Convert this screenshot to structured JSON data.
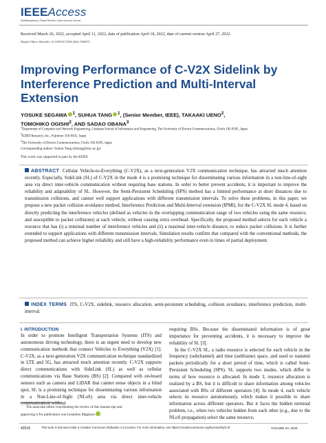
{
  "header": {
    "logo_bold": "IEEE",
    "logo_light": "Access",
    "tagline": "Multidisciplinary  |  Rapid Review  |  Open Access Journal"
  },
  "dates": "Received March 26, 2022, accepted April 11, 2022, date of publication April 18, 2022, date of current version April 27, 2022.",
  "doi": "Digital Object Identifier 10.1109/ACCESS.2022.3168071",
  "title": "Improving Performance of C-V2X Sidelink by Interference Prediction and Multi-Interval Extension",
  "authors": {
    "line1_a": "YOSUKE SEGAWA",
    "line1_a_sup": "1",
    "line1_b": ", SUHUA TANG",
    "line1_b_sup": "1",
    "line1_c": ", (Senior Member, IEEE), TAKAAKI UENO",
    "line1_c_sup": "2",
    "line1_d": ",",
    "line2_a": "TOMOHIKO OGISHI",
    "line2_a_sup": "2",
    "line2_b": ", AND SADAO OBANA",
    "line2_b_sup": "3"
  },
  "affiliations": [
    {
      "sup": "1",
      "text": "Department of Computer and Network Engineering, Graduate School of Informatics and Engineering, The University of Electro-Communications, Chofu 182-8585, Japan"
    },
    {
      "sup": "2",
      "text": "KDDI Research, Inc., Fujimino 356-8502, Japan"
    },
    {
      "sup": "3",
      "text": "The University of Electro-Communications, Chofu 182-8585, Japan"
    }
  ],
  "corresponding": "Corresponding author: Suhua Tang (shtang@uec.ac.jp)",
  "support": "This work was supported in part by the KDDI.",
  "abstract": {
    "label": "ABSTRACT",
    "text": "Cellular Vehicle-to-Everything (C-V2X), as a next-generation V2X communication technique, has attracted much attention recently. Especially, SideLink (SL) of C-V2X in the mode 4 is a promising technique for disseminating various information in a non-line-of-sight area via direct inter-vehicle communication without requiring base stations. In order to better prevent accidents, it is important to improve the reliability and adaptability of SL. However, the Semi-Persistent Scheduling (SPS) method has a limited performance at short distances due to transmission collisions, and cannot well support applications with different transmission intervals. To solve these problems, in this paper, we propose a new packet collision avoidance method, Interference Prediction and Multi-Interval extension (IPMI), for the C-V2X SL mode 4, based on directly predicting the interference vehicles (defined as vehicles in the overlapping communication range of two vehicles using the same resource, and susceptible to packet collisions) at each vehicle, without causing extra overhead. Specifically, the proposed method selects for each vehicle a resource that has (i) a minimal number of interference vehicles and (ii) a maximal inter-vehicle distance, to reduce packet collisions. It is further extended to support applications with different transmission intervals. Simulation results confirm that compared with the conventional methods, the proposed method can achieve higher reliability and still have a high-reliability performance even in times of partial deployment."
  },
  "index_terms": {
    "label": "INDEX TERMS",
    "text": "ITS, C-V2X, sidelink, resource allocation, semi-persistent scheduling, collision avoidance, interference prediction, multi-interval."
  },
  "intro": {
    "heading": "I. INTRODUCTION",
    "left_text": "In order to promote Intelligent Transportation Systems (ITS) and autonomous driving technology, there is an urgent need to develop new communication methods that connect Vehicles to Everything (V2X) [1]. C-V2X, as a next-generation V2X communication technique standardized in LTE and 5G, has attracted much attention recently. C-V2X supports direct communications with SideLink (SL) as well as cellular communications via Base Stations (BS) [2]. Compared with on-board sensors such as camera and LiDAR that cannot sense objects in a blind spot, SL is a promising technique for disseminating various information in a Non-Line-of-Sight (NLoS) area via direct inter-vehicle communication without",
    "right_p1": "requiring BSs. Because the disseminated information is of great importance for preventing accidents, it is necessary to improve the reliability of SL [3].",
    "right_p2": "In the C-V2X SL, a radio resource is selected for each vehicle in the frequency (subchannel) and time (subframe) space, and used to transmit packets periodically for a short period of time, which is called Semi-Persistent Scheduling (SPS). SL supports two modes, which differ in terms of how resource is allocated. In mode 3, resource allocation is realized by a BS, but it is difficult to share information among vehicles associated with BSs of different operators [4]. In mode 4, each vehicle selects its resource autonomously, which makes it possible to share information across different operators. But it faces the hidden terminal problem, i.e., when two vehicles hidden from each other (e.g., due to the NLoS propagation) select the same resource,"
  },
  "footnote": {
    "line1": "The associate editor coordinating the review of this manuscript and",
    "line2": "approving it for publication was Leandros Maglaras"
  },
  "footer": {
    "page_number": "42518",
    "license": "This work is licensed under a Creative Commons Attribution 4.0 License. For more information, see https://creativecommons.org/licenses/by/4.0/",
    "volume": "VOLUME 10, 2022"
  }
}
